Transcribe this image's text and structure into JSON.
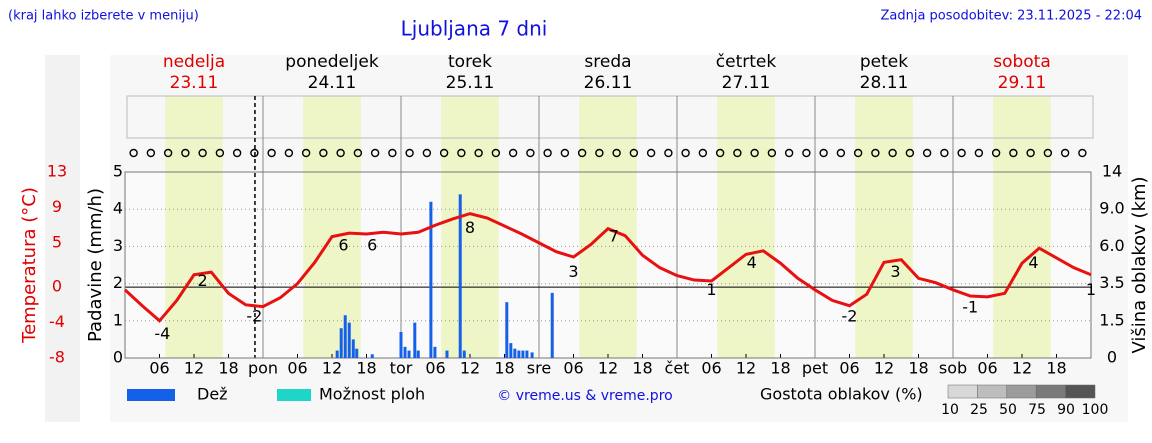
{
  "header": {
    "note": "(kraj lahko izberete v meniju)",
    "updated": "Zadnja posodobitev: 23.11.2025 - 22:04"
  },
  "chart_data": {
    "type": "meteogram",
    "title": "Ljubljana 7 dni",
    "days": [
      {
        "name": "nedelja",
        "date": "23.11",
        "color": "#e00000"
      },
      {
        "name": "ponedeljek",
        "date": "24.11",
        "color": "#000000"
      },
      {
        "name": "torek",
        "date": "25.11",
        "color": "#000000"
      },
      {
        "name": "sreda",
        "date": "26.11",
        "color": "#000000"
      },
      {
        "name": "četrtek",
        "date": "27.11",
        "color": "#000000"
      },
      {
        "name": "petek",
        "date": "28.11",
        "color": "#000000"
      },
      {
        "name": "sobota",
        "date": "29.11",
        "color": "#e00000"
      }
    ],
    "xlim": [
      0,
      168
    ],
    "xticks": [
      {
        "value": 6,
        "label": "06"
      },
      12,
      18,
      {
        "value": 24,
        "label": "pon"
      },
      {
        "value": 30,
        "label": "06"
      },
      {
        "value": 36,
        "label": "12"
      },
      {
        "value": 42,
        "label": "18"
      },
      {
        "value": 48,
        "label": "tor"
      },
      {
        "value": 54,
        "label": "06"
      },
      {
        "value": 60,
        "label": "12"
      },
      {
        "value": 66,
        "label": "18"
      },
      {
        "value": 72,
        "label": "sre"
      },
      {
        "value": 78,
        "label": "06"
      },
      {
        "value": 84,
        "label": "12"
      },
      {
        "value": 90,
        "label": "18"
      },
      {
        "value": 96,
        "label": "čet"
      },
      {
        "value": 102,
        "label": "06"
      },
      {
        "value": 108,
        "label": "12"
      },
      {
        "value": 114,
        "label": "18"
      },
      {
        "value": 120,
        "label": "pet"
      },
      {
        "value": 126,
        "label": "06"
      },
      {
        "value": 132,
        "label": "12"
      },
      {
        "value": 138,
        "label": "18"
      },
      {
        "value": 144,
        "label": "sob"
      },
      {
        "value": 150,
        "label": "06"
      },
      {
        "value": 156,
        "label": "12"
      },
      {
        "value": 162,
        "label": "18"
      }
    ],
    "daylight": [
      7,
      17
    ],
    "now": 22.6,
    "ylabel": "Padavine (mm/h)",
    "ylim": [
      0,
      5
    ],
    "yticks": [
      0,
      1,
      2,
      3,
      4,
      5
    ],
    "grid": true,
    "temperature": {
      "label": "Temperatura (°C)",
      "color": "#e81010",
      "ylim": [
        -8,
        13
      ],
      "yticks": [
        13,
        9,
        5,
        0,
        -4,
        -8
      ],
      "x": [
        0,
        3,
        6,
        9,
        12,
        15,
        18,
        21,
        24,
        27,
        30,
        33,
        36,
        39,
        42,
        45,
        48,
        51,
        54,
        57,
        60,
        63,
        66,
        69,
        72,
        75,
        78,
        81,
        84,
        87,
        90,
        93,
        96,
        99,
        102,
        105,
        108,
        111,
        114,
        117,
        120,
        123,
        126,
        129,
        132,
        135,
        138,
        141,
        144,
        147,
        150,
        153,
        156,
        159,
        162,
        165,
        168
      ],
      "values": [
        -0.3,
        -2.1,
        -3.8,
        -1.5,
        1.4,
        1.7,
        -0.7,
        -2.0,
        -2.2,
        -1.2,
        0.4,
        2.8,
        5.7,
        6.1,
        6.0,
        6.2,
        6.0,
        6.2,
        7.0,
        7.7,
        8.3,
        7.8,
        6.9,
        6.0,
        5.0,
        4.0,
        3.4,
        4.8,
        6.6,
        5.8,
        3.6,
        2.2,
        1.3,
        0.8,
        0.7,
        2.2,
        3.7,
        4.1,
        2.7,
        1.0,
        -0.3,
        -1.5,
        -2.1,
        -0.8,
        2.8,
        3.1,
        1.0,
        0.5,
        -0.3,
        -1.0,
        -1.1,
        -0.7,
        2.7,
        4.4,
        3.3,
        2.2,
        1.4
      ],
      "extremes": {
        "x": [
          6.5,
          13.5,
          22.5,
          38,
          43,
          60,
          78,
          85,
          102,
          109,
          126,
          134,
          147,
          158,
          168
        ],
        "values": [
          -4,
          2,
          -2,
          6,
          6,
          8,
          3,
          7,
          1,
          4,
          -2,
          3,
          -1,
          4,
          1
        ]
      }
    },
    "y2label": "Višina oblakov (km)",
    "y2lim": [
      0,
      14
    ],
    "y2ticks": [
      0,
      1.5,
      3.5,
      {
        "value": 6,
        "label": "6.0"
      },
      {
        "value": 9,
        "label": "9.0"
      },
      14
    ],
    "series": [
      {
        "name": "Dež",
        "color": "#1560e8",
        "x": [
          36.9,
          37.6,
          38.3,
          39,
          39.7,
          40.3,
          43,
          48,
          48.7,
          49.4,
          50.4,
          51,
          53.2,
          53.9,
          56,
          58.3,
          59,
          66.4,
          67.1,
          67.8,
          68.5,
          69.2,
          69.9,
          70.8,
          74.3
        ],
        "values": [
          0.2,
          0.8,
          1.15,
          0.95,
          0.5,
          0.25,
          0.1,
          0.7,
          0.3,
          0.2,
          0.95,
          0.2,
          4.2,
          0.3,
          0.2,
          4.4,
          0.2,
          1.5,
          0.4,
          0.25,
          0.2,
          0.2,
          0.2,
          0.15,
          1.75
        ]
      },
      {
        "name": "Možnost ploh",
        "color": "#1fd6c6",
        "x": [],
        "values": []
      }
    ],
    "credit": "© vreme.us & vreme.pro",
    "density_legend": {
      "title": "Gostota oblakov (%)",
      "levels": [
        10,
        25,
        50,
        75,
        90,
        100
      ],
      "colors": [
        "#d8d8d8",
        "#bdbdbd",
        "#9c9c9c",
        "#7a7a7a",
        "#555555"
      ]
    }
  }
}
